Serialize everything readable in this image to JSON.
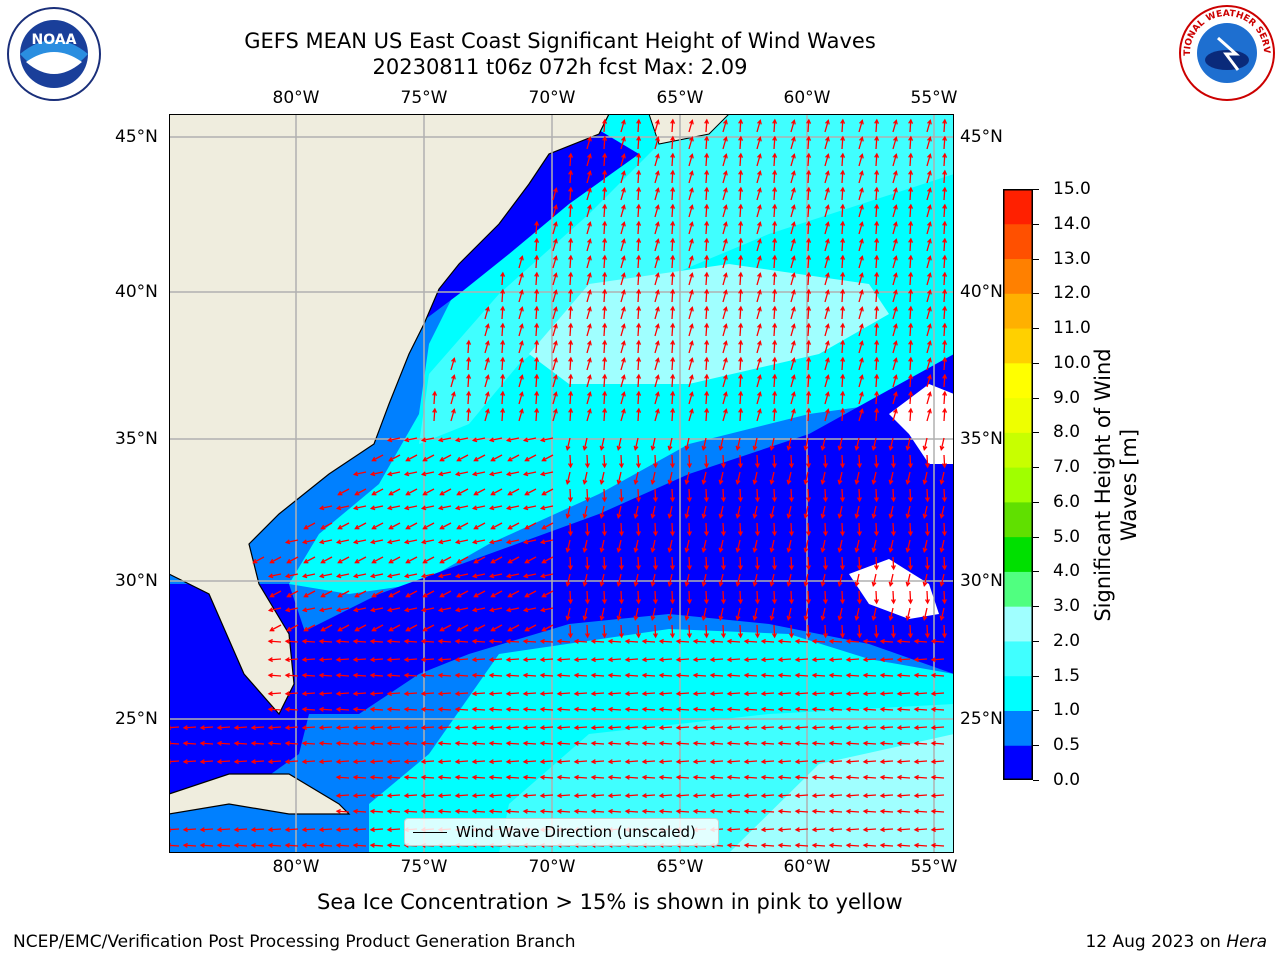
{
  "title": {
    "line1": "GEFS MEAN US East Coast Significant Height of Wind Waves",
    "line2": "20230811 t06z 072h fcst   Max: 2.09"
  },
  "logos": {
    "left": {
      "text": "NOAA",
      "icon": "noaa-logo"
    },
    "right": {
      "text": "NATIONAL WEATHER SERVICE",
      "icon": "nws-logo"
    }
  },
  "map": {
    "lon_labels": [
      "80°W",
      "75°W",
      "70°W",
      "65°W",
      "60°W",
      "55°W"
    ],
    "lat_labels": [
      "45°N",
      "40°N",
      "35°N",
      "30°N",
      "25°N"
    ],
    "land_color": "#efedde",
    "ocean_colors": {
      "0.0-0.5": "#0000ff",
      "0.5-1.0": "#0080ff",
      "1.0-1.5": "#00ffff",
      "1.5-2.0": "#40ffff",
      "2.0-3.0": "#a0ffff"
    },
    "arrow_color": "#ff0000",
    "legend": "Wind Wave Direction (unscaled)"
  },
  "colorbar": {
    "label": "Significant Height of Wind Waves [m]",
    "ticks": [
      "15.0",
      "14.0",
      "13.0",
      "12.0",
      "11.0",
      "10.0",
      "9.0",
      "8.0",
      "7.0",
      "6.0",
      "5.0",
      "4.0",
      "3.0",
      "2.0",
      "1.5",
      "1.0",
      "0.5",
      "0.0"
    ],
    "colors": [
      "#0000ff",
      "#0080ff",
      "#00ffff",
      "#40ffff",
      "#a0ffff",
      "#50ff80",
      "#00e000",
      "#60e000",
      "#a0ff00",
      "#c8ff00",
      "#eeff00",
      "#ffff00",
      "#ffd000",
      "#ffb000",
      "#ff8000",
      "#ff5000",
      "#ff2000",
      "#ff0000"
    ]
  },
  "note": "Sea Ice Concentration > 15% is shown in pink to yellow",
  "footer": {
    "left": "NCEP/EMC/Verification Post Processing Product Generation Branch",
    "date": "12 Aug 2023 on",
    "machine": "Hera"
  }
}
